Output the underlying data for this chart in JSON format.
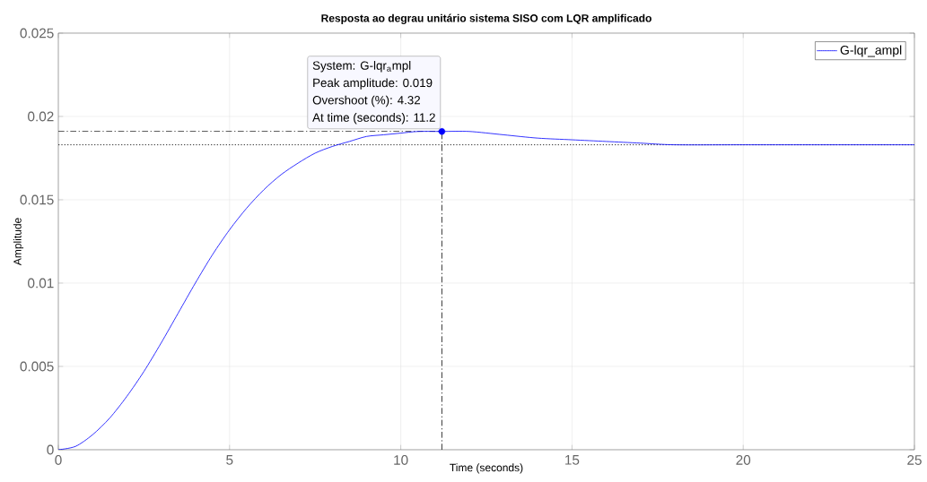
{
  "chart_data": {
    "type": "line",
    "title": "Resposta ao degrau unitário sistema SISO com LQR amplificado",
    "xlabel": "Time (seconds)",
    "ylabel": "Amplitude",
    "x": [
      0,
      0.5,
      1,
      1.5,
      2,
      2.5,
      3,
      3.5,
      4,
      4.5,
      5,
      5.5,
      6,
      6.5,
      7,
      7.5,
      8,
      8.5,
      9,
      9.5,
      10,
      10.5,
      11.2,
      12,
      13,
      14,
      15,
      16,
      17,
      18,
      20,
      22,
      25
    ],
    "series": [
      {
        "name": "G-lqr_ampl",
        "color": "#0000ff",
        "values": [
          0,
          0.0002,
          0.0009,
          0.0019,
          0.0032,
          0.0047,
          0.0064,
          0.0082,
          0.01,
          0.0117,
          0.0132,
          0.0145,
          0.0156,
          0.0165,
          0.0172,
          0.0178,
          0.0182,
          0.0185,
          0.0188,
          0.0189,
          0.019,
          0.0191,
          0.0191,
          0.0191,
          0.0189,
          0.0187,
          0.0186,
          0.0185,
          0.0184,
          0.0183,
          0.0183,
          0.0183,
          0.0183
        ]
      },
      {
        "type": "scatter",
        "color": "#0000ff",
        "marker": "circle",
        "x": [
          11.2
        ],
        "values": [
          0.0191
        ]
      }
    ],
    "ref_lines": [
      {
        "axis": "y",
        "value": 0.0191,
        "color": "#000000",
        "line_style": "dashdot"
      },
      {
        "axis": "x",
        "value": 11.2,
        "color": "#000000",
        "line_style": "dashdot"
      },
      {
        "axis": "y",
        "value": 0.0183,
        "color": "#000000",
        "line_style": "dotted"
      }
    ],
    "annotations": [
      "System: G-lqr$_{a}$mpl",
      "Peak amplitude: 0.019",
      "Overshoot (%): 4.32",
      "At time (seconds): 11.2"
    ],
    "xlim": [
      0,
      25
    ],
    "ylim": [
      0,
      0.025
    ],
    "xticks": [
      0,
      5,
      10,
      15,
      20,
      25
    ],
    "yticks": [
      0,
      0.005,
      0.01,
      0.015,
      0.02,
      0.025
    ],
    "grid": true,
    "legend": "top right"
  }
}
